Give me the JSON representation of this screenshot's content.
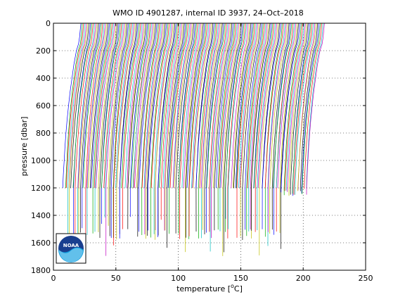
{
  "chart_data": {
    "type": "line",
    "title": "WMO ID 4901287, internal ID 3937, 24–Oct–2018",
    "xlabel_main": "temperature [",
    "xlabel_unit_sup": "o",
    "xlabel_unit_end": "C]",
    "ylabel": "pressure [dbar]",
    "xlim": [
      0,
      250
    ],
    "ylim": [
      1800,
      0
    ],
    "x_ticks": [
      0,
      50,
      100,
      150,
      200,
      250
    ],
    "y_ticks": [
      0,
      200,
      400,
      600,
      800,
      1000,
      1200,
      1400,
      1600,
      1800
    ],
    "grid": true,
    "y_reversed": true,
    "profile_offset_start": 5,
    "profile_offset_end": 200,
    "profile_count": 180,
    "profile_shape": {
      "pressure": [
        0,
        50,
        100,
        150,
        200,
        300,
        400,
        500,
        600,
        700,
        800,
        900,
        1000,
        1100,
        1200
      ],
      "temperature": [
        17,
        16.5,
        16,
        15.2,
        13.5,
        11.5,
        10,
        8.5,
        7.3,
        6.2,
        5.3,
        4.5,
        3.9,
        3.3,
        2.8
      ]
    },
    "colors": [
      "#0000ff",
      "#00aa00",
      "#ff0000",
      "#00bfbf",
      "#bf00bf",
      "#bfbf00",
      "#000000"
    ]
  },
  "logo": {
    "text": "NOAA"
  }
}
